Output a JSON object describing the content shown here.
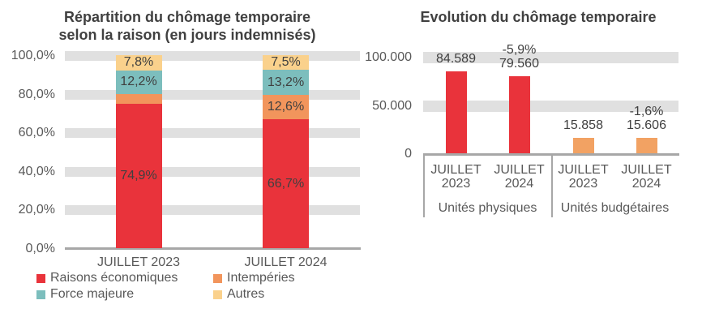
{
  "colors": {
    "red": "#E9333B",
    "orange": "#F2955C",
    "orange_light": "#F2A263",
    "teal": "#7CBEBD",
    "yellow": "#FAD18C",
    "gridband": "#E0E0E0",
    "axis": "#A7A7A7",
    "text_dark": "#404040",
    "text_gray": "#595959"
  },
  "chart_data": [
    {
      "type": "bar",
      "subtype": "stacked-percent",
      "title": "Répartition du chômage temporaire selon la raison (en jours indemnisés)",
      "title_lines": [
        "Répartition du chômage temporaire",
        "selon la raison (en jours indemnisés)"
      ],
      "categories": [
        "JUILLET 2023",
        "JUILLET 2024"
      ],
      "series": [
        {
          "name": "Raisons économiques",
          "color_key": "red",
          "values": [
            74.9,
            66.7
          ],
          "data_labels": [
            "74,9%",
            "66,7%"
          ]
        },
        {
          "name": "Intempéries",
          "color_key": "orange",
          "values": [
            5.1,
            12.6
          ],
          "data_labels": [
            "",
            "12,6%"
          ]
        },
        {
          "name": "Force majeure",
          "color_key": "teal",
          "values": [
            12.2,
            13.2
          ],
          "data_labels": [
            "12,2%",
            "13,2%"
          ]
        },
        {
          "name": "Autres",
          "color_key": "yellow",
          "values": [
            7.8,
            7.5
          ],
          "data_labels": [
            "7,8%",
            "7,5%"
          ]
        }
      ],
      "y_axis": {
        "range": [
          0,
          100
        ],
        "ticks": [
          {
            "value": 100,
            "label": "100,0%"
          },
          {
            "value": 80,
            "label": "80,0%"
          },
          {
            "value": 60,
            "label": "60,0%"
          },
          {
            "value": 40,
            "label": "40,0%"
          },
          {
            "value": 20,
            "label": "20,0%"
          },
          {
            "value": 0,
            "label": "0,0%"
          }
        ]
      },
      "gridlines": "horizontal-bands",
      "legend_position": "bottom"
    },
    {
      "type": "bar",
      "subtype": "grouped",
      "title": "Evolution du chômage temporaire",
      "y_axis": {
        "range": [
          0,
          100000
        ],
        "ticks": [
          {
            "value": 100000,
            "label": "100.000"
          },
          {
            "value": 50000,
            "label": "50.000"
          },
          {
            "value": 0,
            "label": "0"
          }
        ]
      },
      "gridlines": "horizontal-bands",
      "groups": [
        {
          "label": "Unités physiques",
          "color_key": "red",
          "bars": [
            {
              "category_lines": [
                "JUILLET",
                "2023"
              ],
              "value": 84589,
              "value_label": "84.589",
              "delta_label": ""
            },
            {
              "category_lines": [
                "JUILLET",
                "2024"
              ],
              "value": 79560,
              "value_label": "79.560",
              "delta_label": "-5,9%"
            }
          ]
        },
        {
          "label": "Unités budgétaires",
          "color_key": "orange_light",
          "bars": [
            {
              "category_lines": [
                "JUILLET",
                "2023"
              ],
              "value": 15858,
              "value_label": "15.858",
              "delta_label": ""
            },
            {
              "category_lines": [
                "JUILLET",
                "2024"
              ],
              "value": 15606,
              "value_label": "15.606",
              "delta_label": "-1,6%"
            }
          ]
        }
      ]
    }
  ]
}
